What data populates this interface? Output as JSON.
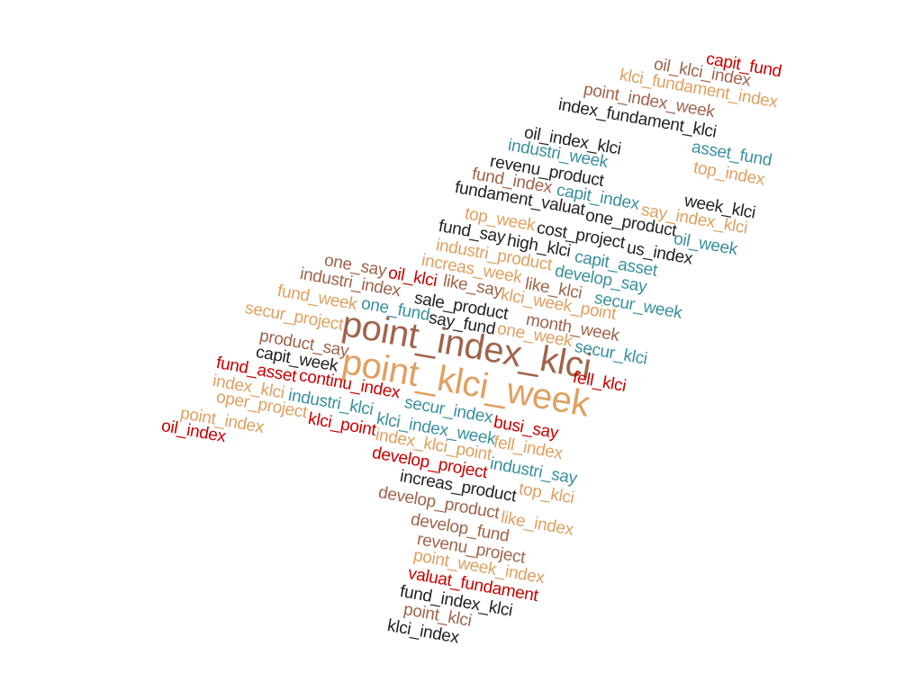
{
  "palette": {
    "red": "#cc0000",
    "tan": "#e0a060",
    "brown": "#a0644a",
    "teal": "#3a8f9f",
    "dark": "#222222"
  },
  "words": [
    {
      "text": "capit_fund",
      "color": "red"
    },
    {
      "text": "oil_klci_index",
      "color": "brown"
    },
    {
      "text": "klci_fundament_index",
      "color": "tan"
    },
    {
      "text": "point_index_week",
      "color": "brown"
    },
    {
      "text": "index_fundament_klci",
      "color": "dark"
    },
    {
      "text": "asset_fund",
      "color": "teal"
    },
    {
      "text": "oil_index_klci",
      "color": "dark"
    },
    {
      "text": "industri_week",
      "color": "teal"
    },
    {
      "text": "top_index",
      "color": "tan"
    },
    {
      "text": "revenu_product",
      "color": "dark"
    },
    {
      "text": "fund_index",
      "color": "brown"
    },
    {
      "text": "capit_index",
      "color": "teal"
    },
    {
      "text": "week_klci",
      "color": "dark"
    },
    {
      "text": "fundament_valuat",
      "color": "dark"
    },
    {
      "text": "one_product",
      "color": "dark"
    },
    {
      "text": "say_index_klci",
      "color": "tan"
    },
    {
      "text": "top_week",
      "color": "tan"
    },
    {
      "text": "cost_project",
      "color": "dark"
    },
    {
      "text": "oil_week",
      "color": "teal"
    },
    {
      "text": "fund_say",
      "color": "dark"
    },
    {
      "text": "high_klci",
      "color": "dark"
    },
    {
      "text": "us_index",
      "color": "dark"
    },
    {
      "text": "industri_product",
      "color": "tan"
    },
    {
      "text": "capit_asset",
      "color": "teal"
    },
    {
      "text": "increas_week",
      "color": "tan"
    },
    {
      "text": "develop_say",
      "color": "teal"
    },
    {
      "text": "one_say",
      "color": "brown"
    },
    {
      "text": "oil_klci",
      "color": "red"
    },
    {
      "text": "like_say",
      "color": "brown"
    },
    {
      "text": "like_klci",
      "color": "brown"
    },
    {
      "text": "industri_index",
      "color": "brown"
    },
    {
      "text": "klci_week_point",
      "color": "tan"
    },
    {
      "text": "secur_week",
      "color": "teal"
    },
    {
      "text": "fund_week",
      "color": "tan"
    },
    {
      "text": "sale_product",
      "color": "dark"
    },
    {
      "text": "one_fund",
      "color": "teal"
    },
    {
      "text": "month_week",
      "color": "brown"
    },
    {
      "text": "secur_project",
      "color": "tan"
    },
    {
      "text": "say_fund",
      "color": "dark"
    },
    {
      "text": "one_week",
      "color": "tan"
    },
    {
      "text": "point_index_klci",
      "color": "brown"
    },
    {
      "text": "product_say",
      "color": "brown"
    },
    {
      "text": "secur_klci",
      "color": "teal"
    },
    {
      "text": "capit_week",
      "color": "dark"
    },
    {
      "text": "point_klci_week",
      "color": "tan"
    },
    {
      "text": "fell_klci",
      "color": "red"
    },
    {
      "text": "fund_asset",
      "color": "red"
    },
    {
      "text": "continu_index",
      "color": "red"
    },
    {
      "text": "index_klci",
      "color": "tan"
    },
    {
      "text": "oper_project",
      "color": "tan"
    },
    {
      "text": "industri_klci",
      "color": "teal"
    },
    {
      "text": "secur_index",
      "color": "teal"
    },
    {
      "text": "busi_say",
      "color": "red"
    },
    {
      "text": "point_index",
      "color": "tan"
    },
    {
      "text": "klci_point",
      "color": "red"
    },
    {
      "text": "klci_index_week",
      "color": "teal"
    },
    {
      "text": "oil_index",
      "color": "red"
    },
    {
      "text": "fell_index",
      "color": "tan"
    },
    {
      "text": "index_klci_point",
      "color": "tan"
    },
    {
      "text": "industri_say",
      "color": "teal"
    },
    {
      "text": "develop_project",
      "color": "red"
    },
    {
      "text": "increas_product",
      "color": "dark"
    },
    {
      "text": "top_klci",
      "color": "tan"
    },
    {
      "text": "develop_product",
      "color": "brown"
    },
    {
      "text": "like_index",
      "color": "tan"
    },
    {
      "text": "develop_fund",
      "color": "brown"
    },
    {
      "text": "revenu_project",
      "color": "brown"
    },
    {
      "text": "point_week_index",
      "color": "tan"
    },
    {
      "text": "valuat_fundament",
      "color": "red"
    },
    {
      "text": "fund_index_klci",
      "color": "dark"
    },
    {
      "text": "point_klci",
      "color": "brown"
    },
    {
      "text": "klci_index",
      "color": "dark"
    }
  ]
}
